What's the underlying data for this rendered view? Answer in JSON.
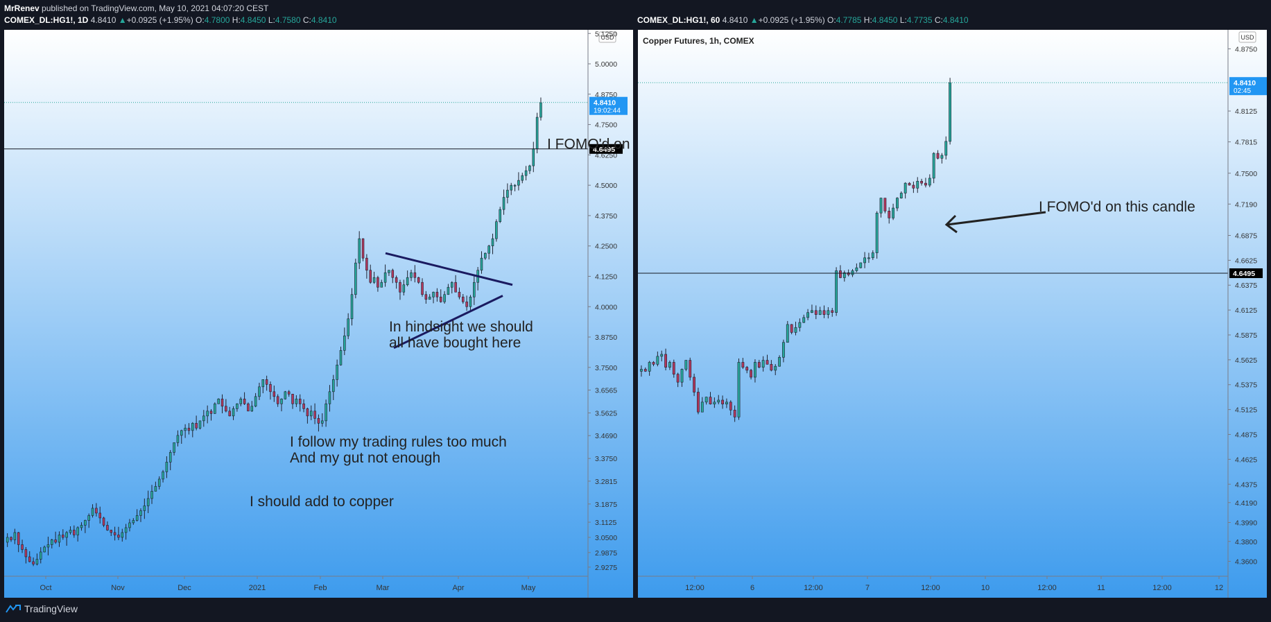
{
  "header": {
    "author": "MrRenev",
    "published": "published on TradingView.com, May 10, 2021 04:07:20 CEST"
  },
  "left_quote": {
    "symbol": "COMEX_DL:HG1!, 1D",
    "last": "4.8410",
    "arrow": "▲",
    "change": "+0.0925 (+1.95%)",
    "o": "4.7800",
    "h": "4.8450",
    "l": "4.7580",
    "c": "4.8410"
  },
  "right_quote": {
    "symbol": "COMEX_DL:HG1!, 60",
    "last": "4.8410",
    "arrow": "▲",
    "change": "+0.0925 (+1.95%)",
    "o": "4.7785",
    "h": "4.8450",
    "l": "4.7735",
    "c": "4.8410"
  },
  "footer": {
    "brand": "TradingView"
  },
  "colors": {
    "bg_top": "#ffffff",
    "bg_bottom": "#3d9bed",
    "up": "#26a69a",
    "down": "#b2385d",
    "frame": "#131722",
    "price_label": "#2196f3",
    "level_label": "#000000",
    "trendline": "#1a1a60"
  },
  "chart_data": [
    {
      "type": "candlestick",
      "symbol": "COMEX_DL:HG1!",
      "interval": "1D",
      "currency": "USD",
      "ylim": [
        2.89,
        5.14
      ],
      "y_ticks": [
        "5.1250",
        "5.0000",
        "4.8750",
        "4.7500",
        "4.6250",
        "4.5000",
        "4.3750",
        "4.2500",
        "4.1250",
        "4.0000",
        "3.8750",
        "3.7500",
        "3.6565",
        "3.5625",
        "3.4690",
        "3.3750",
        "3.2815",
        "3.1875",
        "3.1125",
        "3.0500",
        "2.9875",
        "2.9275"
      ],
      "x_labels": [
        "Oct",
        "Nov",
        "Dec",
        "2021",
        "Feb",
        "Mar",
        "Apr",
        "May"
      ],
      "last_price": "4.8410",
      "countdown": "19:02:44",
      "level": "4.6495",
      "annotations": [
        "I FOMO'd on this candle",
        "In hindsight we should",
        "all have bought here",
        "I follow my trading rules too much",
        "And my gut not enough",
        "I should add to copper"
      ],
      "closes": [
        3.05,
        3.04,
        3.07,
        3.02,
        3.0,
        2.97,
        2.95,
        2.94,
        2.96,
        2.99,
        3.01,
        3.02,
        3.04,
        3.03,
        3.06,
        3.05,
        3.07,
        3.08,
        3.06,
        3.09,
        3.1,
        3.12,
        3.14,
        3.17,
        3.15,
        3.13,
        3.1,
        3.08,
        3.07,
        3.06,
        3.05,
        3.07,
        3.09,
        3.11,
        3.12,
        3.14,
        3.16,
        3.18,
        3.21,
        3.24,
        3.26,
        3.29,
        3.32,
        3.36,
        3.4,
        3.44,
        3.47,
        3.49,
        3.5,
        3.49,
        3.52,
        3.5,
        3.53,
        3.55,
        3.57,
        3.56,
        3.6,
        3.62,
        3.59,
        3.57,
        3.55,
        3.58,
        3.6,
        3.62,
        3.6,
        3.57,
        3.59,
        3.63,
        3.67,
        3.7,
        3.68,
        3.65,
        3.63,
        3.6,
        3.62,
        3.65,
        3.64,
        3.6,
        3.62,
        3.6,
        3.58,
        3.55,
        3.57,
        3.54,
        3.52,
        3.53,
        3.6,
        3.65,
        3.7,
        3.76,
        3.82,
        3.88,
        3.95,
        4.05,
        4.18,
        4.28,
        4.2,
        4.15,
        4.1,
        4.12,
        4.08,
        4.1,
        4.14,
        4.15,
        4.12,
        4.1,
        4.06,
        4.09,
        4.12,
        4.14,
        4.12,
        4.1,
        4.05,
        4.03,
        4.04,
        4.06,
        4.04,
        4.02,
        4.05,
        4.08,
        4.1,
        4.06,
        4.04,
        4.02,
        4.0,
        4.04,
        4.1,
        4.15,
        4.2,
        4.22,
        4.25,
        4.28,
        4.35,
        4.4,
        4.45,
        4.48,
        4.5,
        4.5,
        4.52,
        4.54,
        4.56,
        4.58,
        4.65,
        4.78,
        4.84
      ],
      "hindsight_triangle": {
        "upper": [
          [
            4.22,
            "Mar"
          ],
          [
            4.09,
            "Apr end"
          ]
        ],
        "lower": [
          [
            3.83,
            "Mar"
          ],
          [
            4.05,
            "Apr end"
          ]
        ]
      }
    },
    {
      "type": "candlestick",
      "symbol": "COMEX_DL:HG1!",
      "title": "Copper Futures, 1h, COMEX",
      "interval": "60",
      "currency": "USD",
      "ylim": [
        4.345,
        4.8941
      ],
      "y_ticks": [
        "4.8750",
        "4.8125",
        "4.7815",
        "4.7500",
        "4.7190",
        "4.6875",
        "4.6625",
        "4.6375",
        "4.6125",
        "4.5875",
        "4.5625",
        "4.5375",
        "4.5125",
        "4.4875",
        "4.4625",
        "4.4375",
        "4.4190",
        "4.3990",
        "4.3800",
        "4.3600"
      ],
      "x_labels": [
        "12:00",
        "6",
        "12:00",
        "7",
        "12:00",
        "10",
        "12:00",
        "11",
        "12:00",
        "12"
      ],
      "last_price": "4.8410",
      "countdown": "02:45",
      "level": "4.6495",
      "annotation": "I FOMO'd on this candle",
      "closes": [
        4.553,
        4.551,
        4.56,
        4.558,
        4.566,
        4.568,
        4.555,
        4.56,
        4.548,
        4.54,
        4.553,
        4.562,
        4.545,
        4.53,
        4.51,
        4.52,
        4.525,
        4.518,
        4.52,
        4.522,
        4.518,
        4.52,
        4.512,
        4.505,
        4.56,
        4.555,
        4.552,
        4.545,
        4.56,
        4.555,
        4.562,
        4.558,
        4.552,
        4.556,
        4.565,
        4.58,
        4.598,
        4.59,
        4.595,
        4.6,
        4.605,
        4.61,
        4.612,
        4.608,
        4.612,
        4.608,
        4.612,
        4.61,
        4.652,
        4.645,
        4.65,
        4.648,
        4.652,
        4.655,
        4.66,
        4.665,
        4.665,
        4.67,
        4.71,
        4.725,
        4.712,
        4.705,
        4.715,
        4.725,
        4.73,
        4.74,
        4.738,
        4.735,
        4.742,
        4.74,
        4.738,
        4.745,
        4.77,
        4.765,
        4.768,
        4.782,
        4.841
      ]
    }
  ]
}
